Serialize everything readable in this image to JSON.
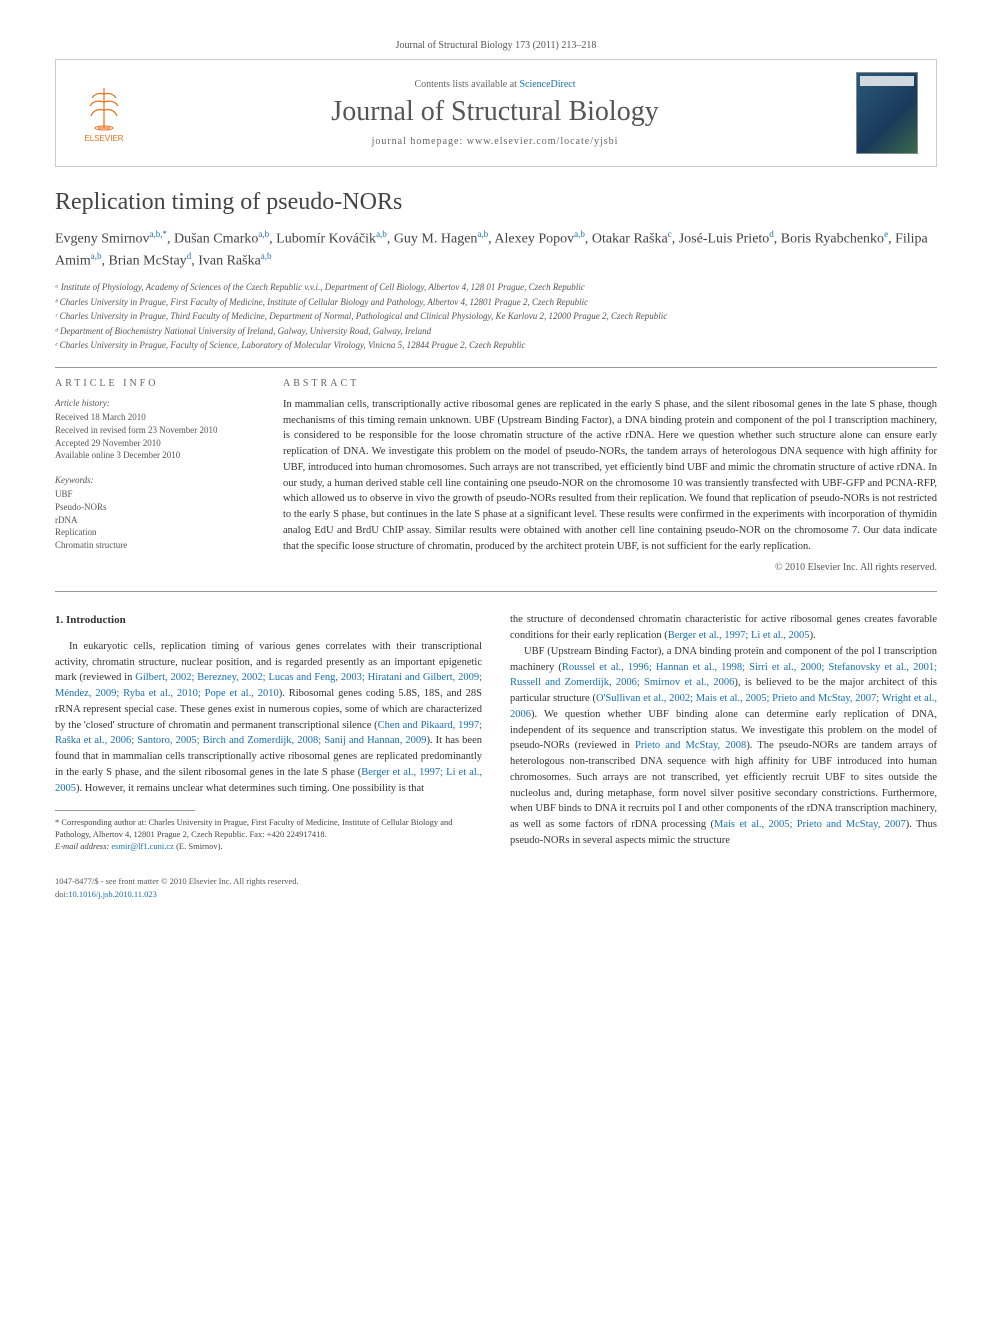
{
  "citation": "Journal of Structural Biology 173 (2011) 213–218",
  "header": {
    "contents_prefix": "Contents lists available at ",
    "contents_link": "ScienceDirect",
    "journal": "Journal of Structural Biology",
    "homepage_prefix": "journal homepage: ",
    "homepage_url": "www.elsevier.com/locate/yjsbi",
    "publisher": "ELSEVIER"
  },
  "title": "Replication timing of pseudo-NORs",
  "authors_html": "Evgeny Smirnov<sup>a,b,*</sup>, Dušan Cmarko<sup>a,b</sup>, Lubomír Kováčik<sup>a,b</sup>, Guy M. Hagen<sup>a,b</sup>, Alexey Popov<sup>a,b</sup>, Otakar Raška<sup>c</sup>, José-Luis Prieto<sup>d</sup>, Boris Ryabchenko<sup>e</sup>, Filipa Amim<sup>a,b</sup>, Brian McStay<sup>d</sup>, Ivan Raška<sup>a,b</sup>",
  "affiliations": [
    "ᵃ Institute of Physiology, Academy of Sciences of the Czech Republic v.v.i., Department of Cell Biology, Albertov 4, 128 01 Prague, Czech Republic",
    "ᵇ Charles University in Prague, First Faculty of Medicine, Institute of Cellular Biology and Pathology, Albertov 4, 12801 Prague 2, Czech Republic",
    "ᶜ Charles University in Prague, Third Faculty of Medicine, Department of Normal, Pathological and Clinical Physiology, Ke Karlovu 2, 12000 Prague 2, Czech Republic",
    "ᵈ Department of Biochemistry National University of Ireland, Galway, University Road, Galway, Ireland",
    "ᵉ Charles University in Prague, Faculty of Science, Laboratory of Molecular Virology, Vinicna 5, 12844 Prague 2, Czech Republic"
  ],
  "article_info": {
    "heading": "ARTICLE INFO",
    "history_label": "Article history:",
    "history": [
      "Received 18 March 2010",
      "Received in revised form 23 November 2010",
      "Accepted 29 November 2010",
      "Available online 3 December 2010"
    ],
    "keywords_label": "Keywords:",
    "keywords": [
      "UBF",
      "Pseudo-NORs",
      "rDNA",
      "Replication",
      "Chromatin structure"
    ]
  },
  "abstract": {
    "heading": "ABSTRACT",
    "text": "In mammalian cells, transcriptionally active ribosomal genes are replicated in the early S phase, and the silent ribosomal genes in the late S phase, though mechanisms of this timing remain unknown. UBF (Upstream Binding Factor), a DNA binding protein and component of the pol I transcription machinery, is considered to be responsible for the loose chromatin structure of the active rDNA. Here we question whether such structure alone can ensure early replication of DNA. We investigate this problem on the model of pseudo-NORs, the tandem arrays of heterologous DNA sequence with high affinity for UBF, introduced into human chromosomes. Such arrays are not transcribed, yet efficiently bind UBF and mimic the chromatin structure of active rDNA. In our study, a human derived stable cell line containing one pseudo-NOR on the chromosome 10 was transiently transfected with UBF-GFP and PCNA-RFP, which allowed us to observe in vivo the growth of pseudo-NORs resulted from their replication. We found that replication of pseudo-NORs is not restricted to the early S phase, but continues in the late S phase at a significant level. These results were confirmed in the experiments with incorporation of thymidin analog EdU and BrdU ChIP assay. Similar results were obtained with another cell line containing pseudo-NOR on the chromosome 7. Our data indicate that the specific loose structure of chromatin, produced by the architect protein UBF, is not sufficient for the early replication.",
    "copyright": "© 2010 Elsevier Inc. All rights reserved."
  },
  "body": {
    "section_number": "1.",
    "section_title": "Introduction",
    "col1_p1_a": "In eukaryotic cells, replication timing of various genes correlates with their transcriptional activity, chromatin structure, nuclear position, and is regarded presently as an important epigenetic mark (reviewed in ",
    "col1_p1_link1": "Gilbert, 2002; Berezney, 2002; Lucas and Feng, 2003; Hiratani and Gilbert, 2009; Méndez, 2009; Ryba et al., 2010; Pope et al., 2010",
    "col1_p1_b": "). Ribosomal genes coding 5.8S, 18S, and 28S rRNA represent special case. These genes exist in numerous copies, some of which are characterized by the 'closed' structure of chromatin and permanent transcriptional silence (",
    "col1_p1_link2": "Chen and Pikaard, 1997; Raška et al., 2006; Santoro, 2005; Birch and Zomerdijk, 2008; Sanij and Hannan, 2009",
    "col1_p1_c": "). It has been found that in mammalian cells transcriptionally active ribosomal genes are replicated predominantly in the early S phase, and the silent ribosomal genes in the late S phase (",
    "col1_p1_link3": "Berger et al., 1997; Li et al., 2005",
    "col1_p1_d": "). However, it remains unclear what determines such timing. One possibility is that",
    "col2_p1_a": "the structure of decondensed chromatin characteristic for active ribosomal genes creates favorable conditions for their early replication (",
    "col2_p1_link1": "Berger et al., 1997; Li et al., 2005",
    "col2_p1_b": ").",
    "col2_p2_a": "UBF (Upstream Binding Factor), a DNA binding protein and component of the pol I transcription machinery (",
    "col2_p2_link1": "Roussel et al., 1996; Hannan et al., 1998; Sirri et al., 2000; Stefanovsky et al., 2001; Russell and Zomerdijk, 2006; Smirnov et al., 2006",
    "col2_p2_b": "), is believed to be the major architect of this particular structure (",
    "col2_p2_link2": "O'Sullivan et al., 2002; Mais et al., 2005; Prieto and McStay, 2007; Wright et al., 2006",
    "col2_p2_c": "). We question whether UBF binding alone can determine early replication of DNA, independent of its sequence and transcription status. We investigate this problem on the model of pseudo-NORs (reviewed in ",
    "col2_p2_link3": "Prieto and McStay, 2008",
    "col2_p2_d": "). The pseudo-NORs are tandem arrays of heterologous non-transcribed DNA sequence with high affinity for UBF introduced into human chromosomes. Such arrays are not transcribed, yet efficiently recruit UBF to sites outside the nucleolus and, during metaphase, form novel silver positive secondary constrictions. Furthermore, when UBF binds to DNA it recruits pol I and other components of the rDNA transcription machinery, as well as some factors of rDNA processing (",
    "col2_p2_link4": "Mais et al., 2005; Prieto and McStay, 2007",
    "col2_p2_e": "). Thus pseudo-NORs in several aspects mimic the structure"
  },
  "footnote": {
    "corr": "* Corresponding author at: Charles University in Prague, First Faculty of Medicine, Institute of Cellular Biology and Pathology, Albertov 4, 12801 Prague 2, Czech Republic. Fax: +420 224917418.",
    "email_label": "E-mail address: ",
    "email": "esmir@lf1.cuni.cz",
    "email_suffix": " (E. Smirnov)."
  },
  "bottom": {
    "issn": "1047-8477/$ - see front matter © 2010 Elsevier Inc. All rights reserved.",
    "doi_label": "doi:",
    "doi": "10.1016/j.jsb.2010.11.023"
  },
  "colors": {
    "link": "#1a6fb3",
    "publisher": "#e9711c",
    "text": "#333333",
    "muted": "#555555",
    "border": "#999999"
  }
}
